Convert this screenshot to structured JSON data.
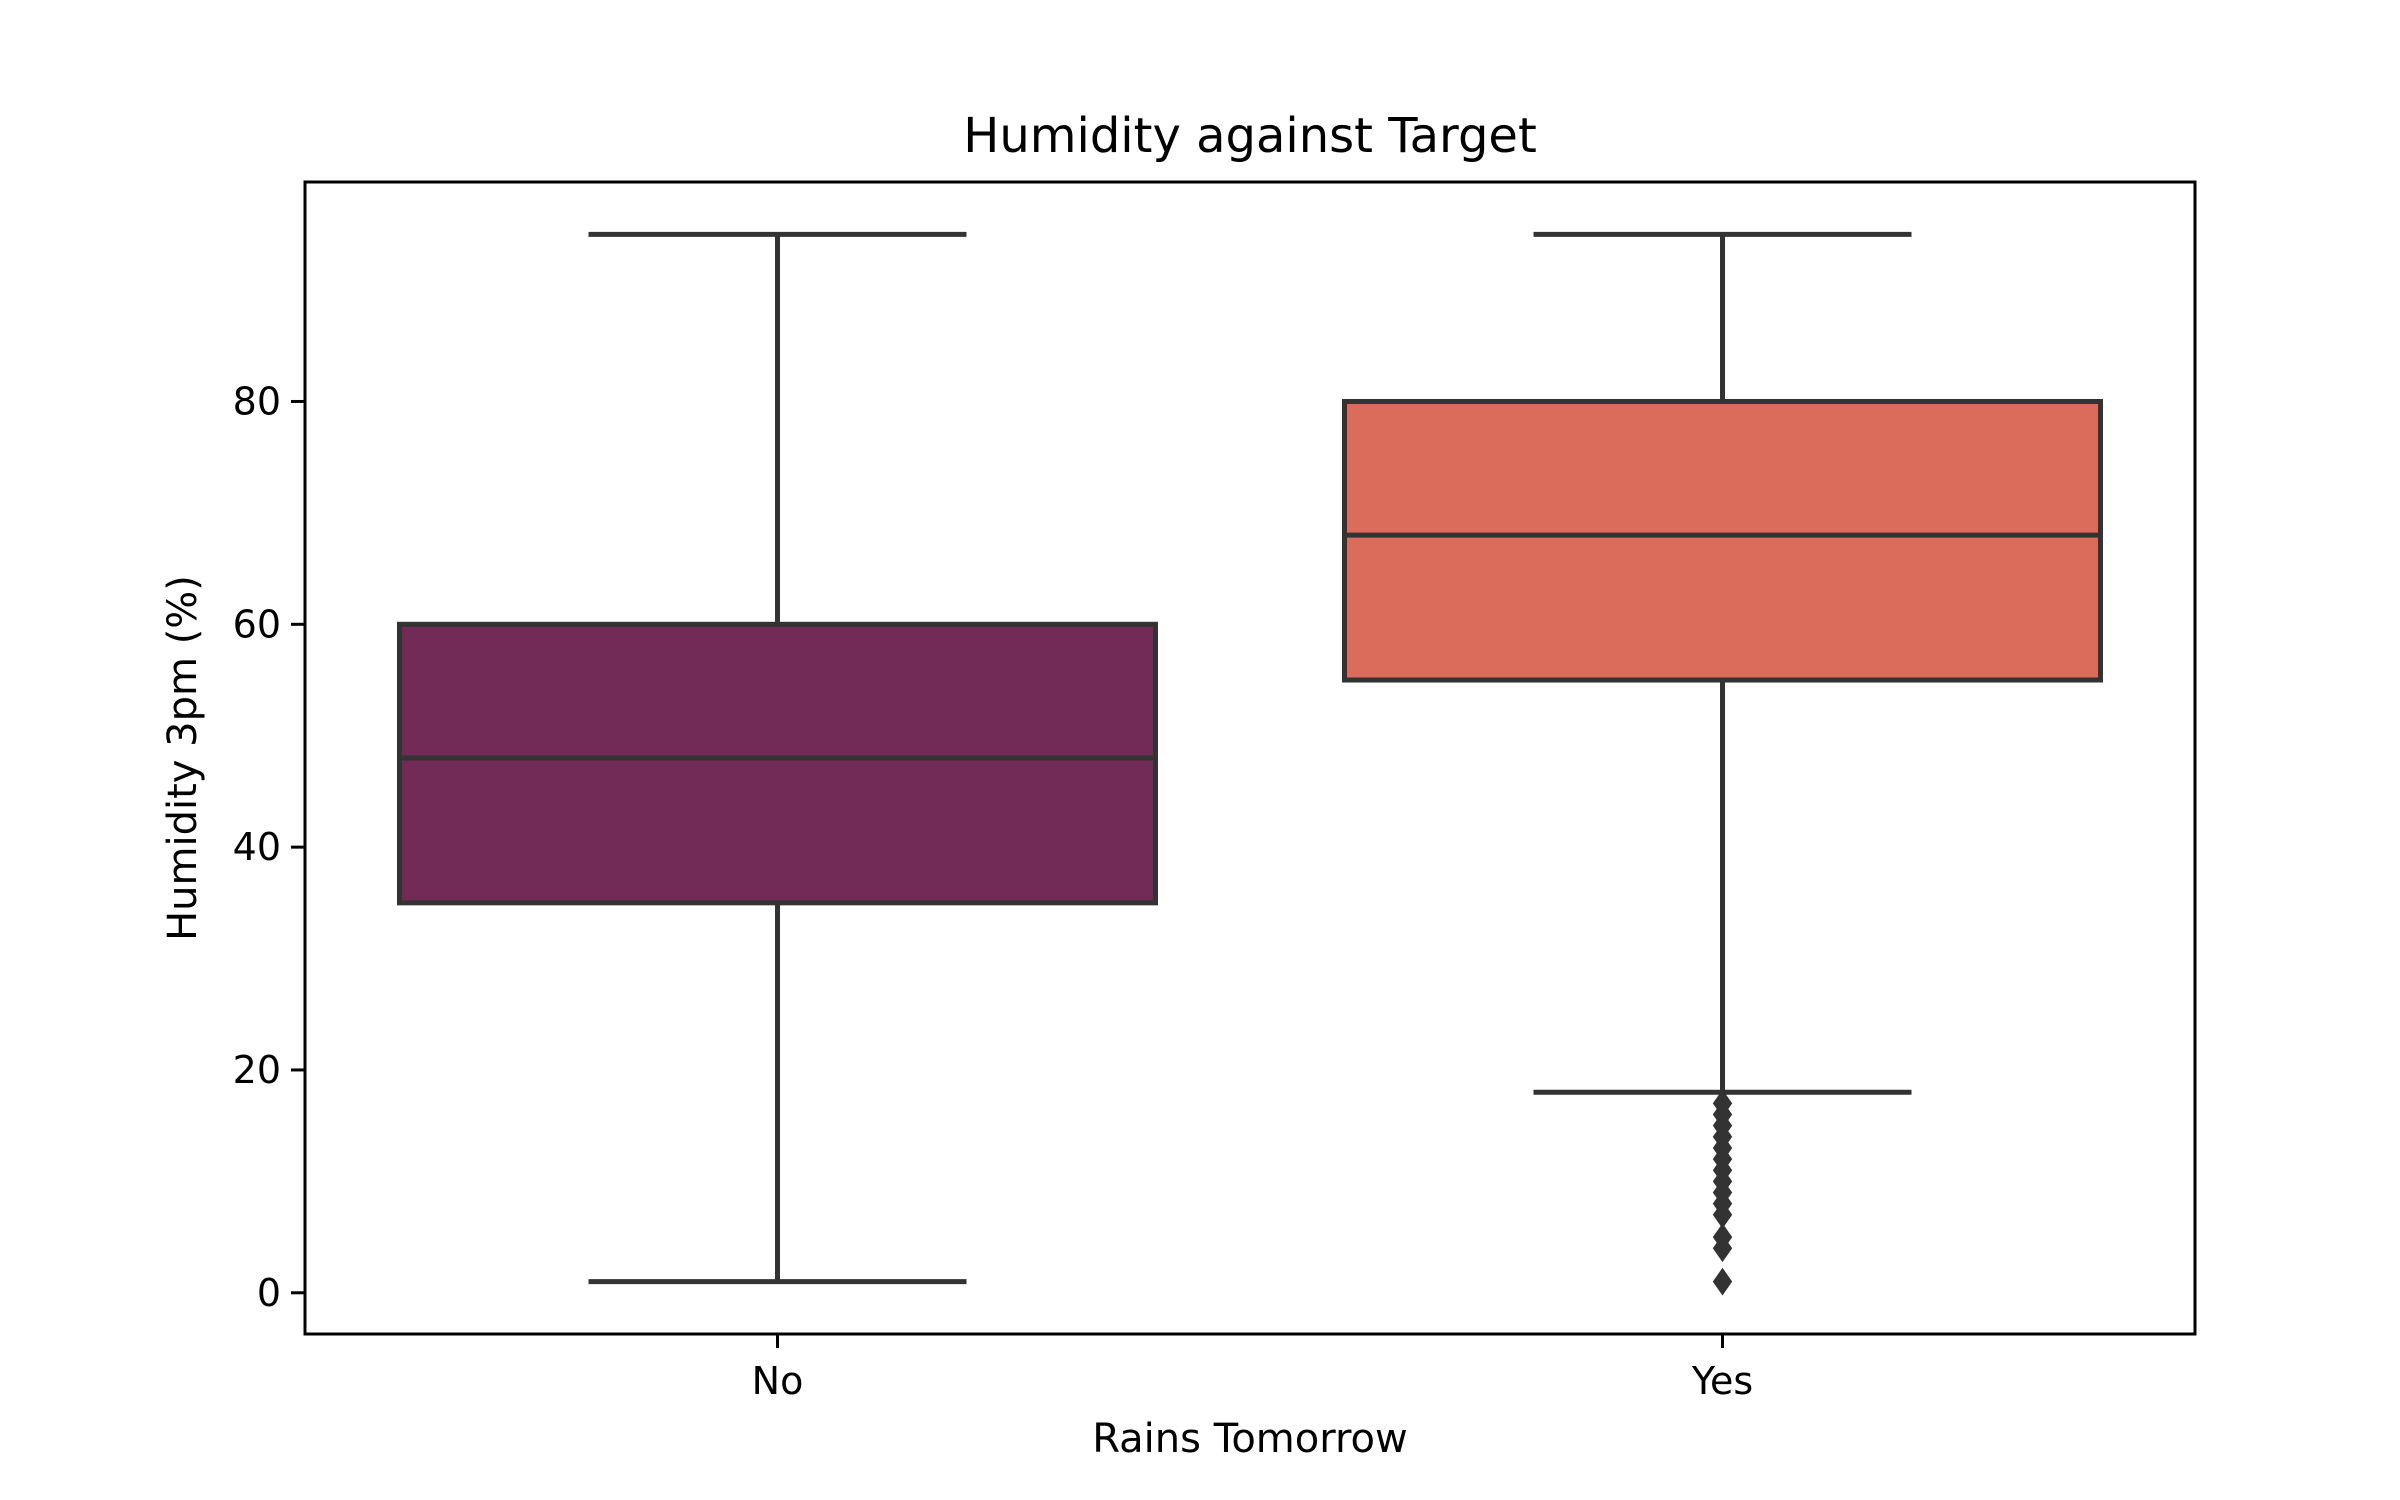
{
  "chart_data": {
    "type": "boxplot",
    "title": "Humidity against Target",
    "xlabel": "Rains Tomorrow",
    "ylabel": "Humidity 3pm (%)",
    "categories": [
      "No",
      "Yes"
    ],
    "ylim": [
      -3.7,
      99.7
    ],
    "yticks": [
      0,
      20,
      40,
      60,
      80
    ],
    "grid": false,
    "boxes": [
      {
        "category": "No",
        "color": "#722B57",
        "whisker_low": 1,
        "q1": 35,
        "median": 48,
        "q3": 60,
        "whisker_high": 95,
        "outliers": []
      },
      {
        "category": "Yes",
        "color": "#DB6C5B",
        "whisker_low": 18,
        "q1": 55,
        "median": 68,
        "q3": 80,
        "whisker_high": 95,
        "outliers": [
          17,
          16,
          15,
          14,
          13,
          12,
          11,
          10,
          9,
          8,
          7,
          5,
          4,
          1
        ]
      }
    ],
    "line_color": "#333333"
  }
}
